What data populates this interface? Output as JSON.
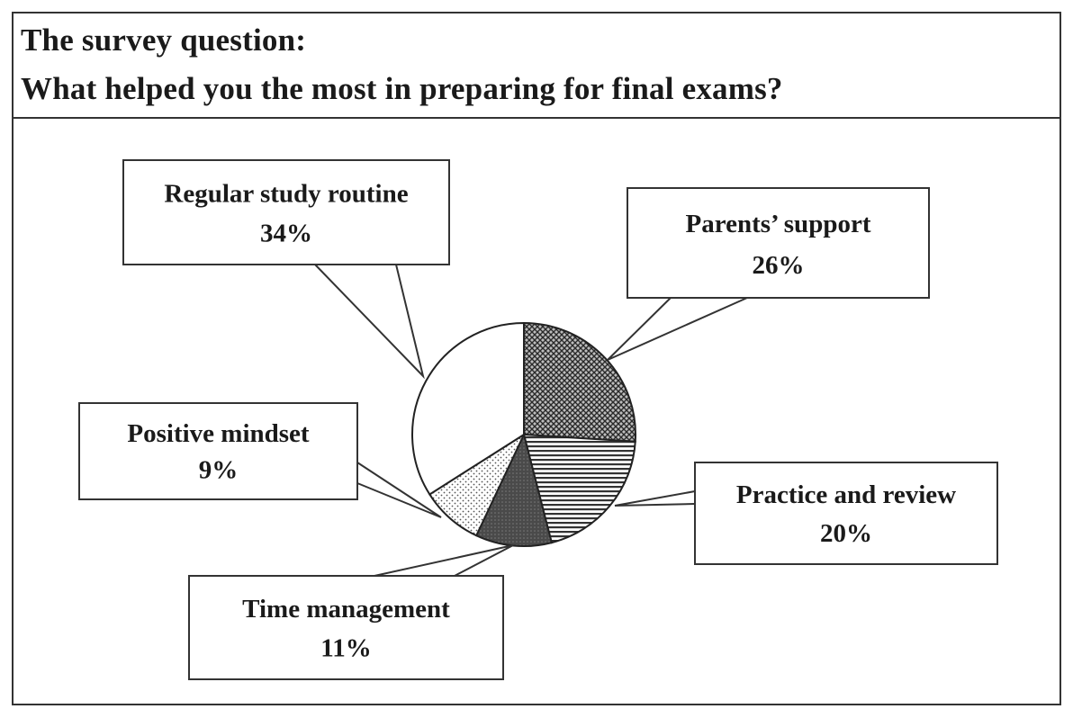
{
  "header": {
    "line1": "The survey question:",
    "line2": "What helped you the most in preparing for final exams?"
  },
  "chart_data": {
    "type": "pie",
    "start_angle_deg": 0,
    "direction": "clockwise",
    "slices": [
      {
        "label": "Parents’ support",
        "value": 26,
        "value_label": "26%",
        "pattern": "crosshatch"
      },
      {
        "label": "Practice and review",
        "value": 20,
        "value_label": "20%",
        "pattern": "horizontal-lines"
      },
      {
        "label": "Time management",
        "value": 11,
        "value_label": "11%",
        "pattern": "dark"
      },
      {
        "label": "Positive mindset",
        "value": 9,
        "value_label": "9%",
        "pattern": "light-dots"
      },
      {
        "label": "Regular study routine",
        "value": 34,
        "value_label": "34%",
        "pattern": "white"
      }
    ]
  }
}
